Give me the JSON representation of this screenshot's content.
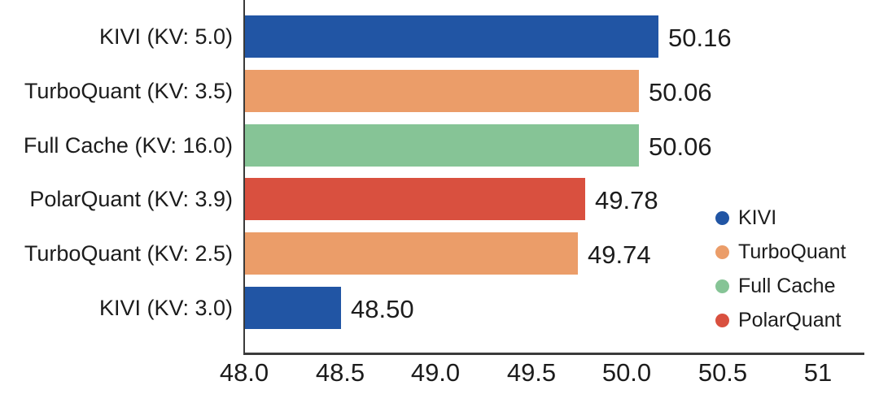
{
  "chart_data": {
    "type": "bar",
    "orientation": "horizontal",
    "title": "",
    "xlabel": "",
    "ylabel": "",
    "grid": false,
    "categories": [
      "KIVI (KV: 5.0)",
      "TurboQuant (KV: 3.5)",
      "Full Cache (KV: 16.0)",
      "PolarQuant (KV: 3.9)",
      "TurboQuant (KV: 2.5)",
      "KIVI (KV: 3.0)"
    ],
    "values": [
      50.16,
      50.06,
      50.06,
      49.78,
      49.74,
      48.5
    ],
    "value_labels": [
      "50.16",
      "50.06",
      "50.06",
      "49.78",
      "49.74",
      "48.50"
    ],
    "bar_series": [
      "KIVI",
      "TurboQuant",
      "Full Cache",
      "PolarQuant",
      "TurboQuant",
      "KIVI"
    ],
    "series_colors": {
      "KIVI": "#2155a4",
      "TurboQuant": "#eb9d69",
      "Full Cache": "#86c496",
      "PolarQuant": "#d9503f"
    },
    "legend": [
      {
        "name": "KIVI",
        "color": "#2155a4"
      },
      {
        "name": "TurboQuant",
        "color": "#eb9d69"
      },
      {
        "name": "Full Cache",
        "color": "#86c496"
      },
      {
        "name": "PolarQuant",
        "color": "#d9503f"
      }
    ],
    "legend_position": "right-middle",
    "x_ticks": [
      {
        "value": 48.0,
        "label": "48.0"
      },
      {
        "value": 48.5,
        "label": "48.5"
      },
      {
        "value": 49.0,
        "label": "49.0"
      },
      {
        "value": 49.5,
        "label": "49.5"
      },
      {
        "value": 50.0,
        "label": "50.0"
      },
      {
        "value": 50.5,
        "label": "50.5"
      },
      {
        "value": 51.0,
        "label": "51"
      }
    ],
    "xlim": [
      48.0,
      51.3
    ],
    "text_color": "#1c1c1c",
    "axis_color": "#3a3a3a"
  }
}
